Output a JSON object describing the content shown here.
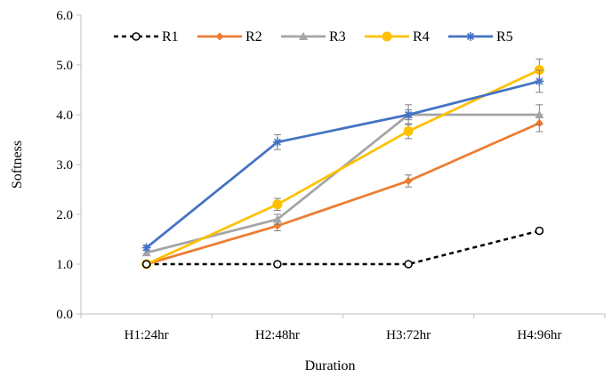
{
  "chart_data": {
    "type": "line",
    "title": "",
    "xlabel": "Duration",
    "ylabel": "Softness",
    "categories": [
      "H1:24hr",
      "H2:48hr",
      "H3:72hr",
      "H4:96hr"
    ],
    "ylim": [
      0,
      6
    ],
    "yticks": [
      "0.0",
      "1.0",
      "2.0",
      "3.0",
      "4.0",
      "5.0",
      "6.0"
    ],
    "grid": false,
    "legend_position": "top",
    "series": [
      {
        "name": "R1",
        "values": [
          1.0,
          1.0,
          1.0,
          1.67
        ],
        "errors": [
          0.0,
          0.0,
          0.0,
          0.05
        ],
        "color": "#000000",
        "marker": "circle-open",
        "dash": true
      },
      {
        "name": "R2",
        "values": [
          1.0,
          1.77,
          2.67,
          3.83
        ],
        "errors": [
          0.0,
          0.1,
          0.12,
          0.17
        ],
        "color": "#ED7D31",
        "marker": "diamond",
        "dash": false
      },
      {
        "name": "R3",
        "values": [
          1.23,
          1.9,
          4.0,
          4.0
        ],
        "errors": [
          0.05,
          0.1,
          0.2,
          0.2
        ],
        "color": "#A5A5A5",
        "marker": "triangle",
        "dash": false
      },
      {
        "name": "R4",
        "values": [
          1.0,
          2.2,
          3.67,
          4.9
        ],
        "errors": [
          0.0,
          0.12,
          0.15,
          0.22
        ],
        "color": "#FFC000",
        "marker": "circle",
        "dash": false
      },
      {
        "name": "R5",
        "values": [
          1.33,
          3.45,
          4.0,
          4.67
        ],
        "errors": [
          0.05,
          0.15,
          0.1,
          0.22
        ],
        "color": "#4472C4",
        "marker": "star",
        "dash": false
      }
    ]
  }
}
